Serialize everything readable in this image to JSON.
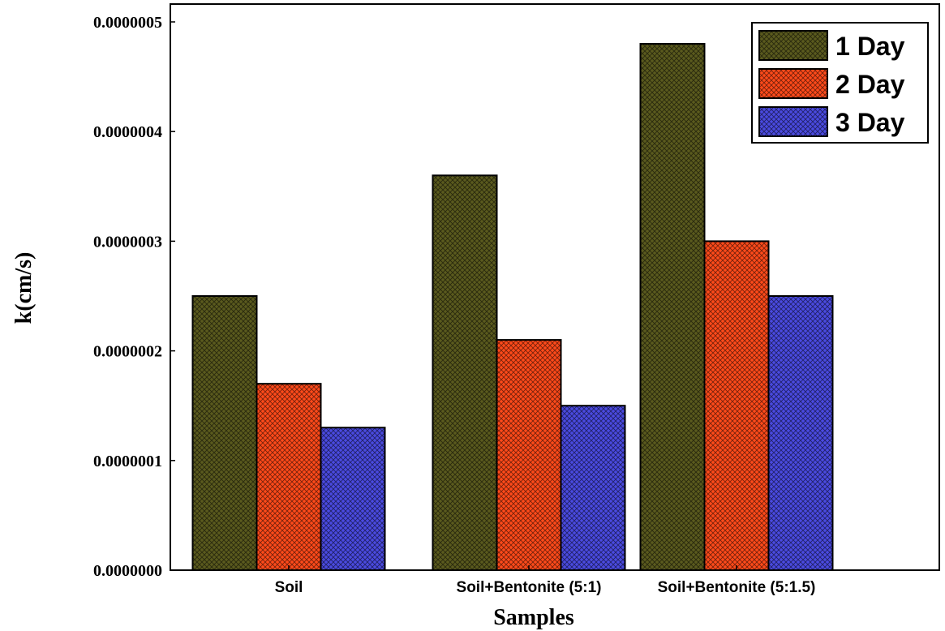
{
  "chart_data": {
    "type": "bar",
    "categories": [
      "Soil",
      "Soil+Bentonite (5:1)",
      "Soil+Bentonite (5:1.5)"
    ],
    "series": [
      {
        "name": "1 Day",
        "values": [
          2.5e-07,
          3.6e-07,
          4.8e-07
        ],
        "color": "#5a5a1e"
      },
      {
        "name": "2 Day",
        "values": [
          1.7e-07,
          2.1e-07,
          3e-07
        ],
        "color": "#ff4a1a"
      },
      {
        "name": "3 Day",
        "values": [
          1.3e-07,
          1.5e-07,
          2.5e-07
        ],
        "color": "#4a4ae0"
      }
    ],
    "yticks": [
      "0.0000000",
      "0.0000001",
      "0.0000002",
      "0.0000003",
      "0.0000004",
      "0.0000005"
    ],
    "xlabel": "Samples",
    "ylabel": "k(cm/s)",
    "ylim": [
      0,
      5e-07
    ],
    "grid": false,
    "legend_position": "top-right",
    "bar_fill": "cross-hatched"
  }
}
